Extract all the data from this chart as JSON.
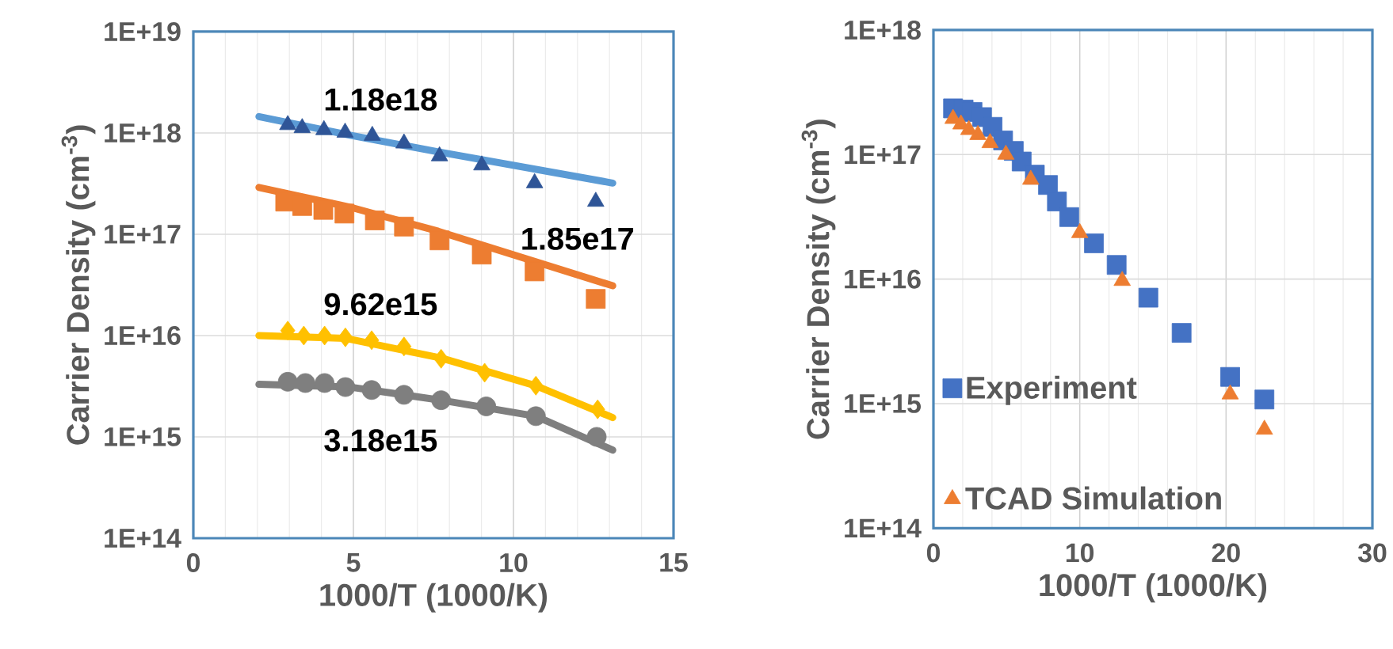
{
  "chart_data": [
    {
      "type": "scatter",
      "xlabel": "1000/T (1000/K)",
      "ylabel": "Carrier Density (cm$^{-3}$)",
      "log": "y",
      "grid": true,
      "legend": false,
      "xlim": [
        0,
        15
      ],
      "xticks": [
        0,
        5,
        10,
        15
      ],
      "ylim": [
        100000000000000.0,
        1e+19
      ],
      "yticks": [
        {
          "value": 100000000000000.0,
          "label": "1E+14"
        },
        {
          "value": 1000000000000000.0,
          "label": "1E+15"
        },
        {
          "value": 1e+16,
          "label": "1E+16"
        },
        {
          "value": 1e+17,
          "label": "1E+17"
        },
        {
          "value": 1e+18,
          "label": "1E+18"
        },
        {
          "value": 1e+19,
          "label": "1E+19"
        }
      ],
      "series": [
        {
          "marker": "triangle",
          "color": "#2f5597",
          "x": [
            2.95,
            3.4,
            4.08,
            4.74,
            5.59,
            6.58,
            7.69,
            9.01,
            10.66,
            12.57
          ],
          "values": [
            1.2e+18,
            1.12e+18,
            1.07e+18,
            1.01e+18,
            9.4e+17,
            7.9e+17,
            5.9e+17,
            4.8e+17,
            3.2e+17,
            2.1e+17
          ]
        },
        {
          "type": "line",
          "marker": "none",
          "color": "#5b9bd5",
          "x": [
            2.05,
            4.9,
            7.65,
            13.1
          ],
          "values": [
            1.45e+18,
            9.5e+17,
            6.5e+17,
            3.2e+17
          ]
        },
        {
          "marker": "square",
          "color": "#ed7d31",
          "x": [
            2.87,
            3.4,
            4.06,
            4.72,
            5.67,
            6.58,
            7.69,
            9.01,
            10.66,
            12.57
          ],
          "values": [
            2.1e+17,
            1.9e+17,
            1.74e+17,
            1.6e+17,
            1.37e+17,
            1.19e+17,
            8.7e+16,
            6.3e+16,
            4.3e+16,
            2.3e+16
          ]
        },
        {
          "type": "line",
          "marker": "none",
          "color": "#ed7d31",
          "x": [
            2.05,
            4.9,
            7.65,
            13.1
          ],
          "values": [
            2.9e+17,
            1.85e+17,
            1.07e+17,
            3.1e+16
          ]
        },
        {
          "marker": "diamond",
          "color": "#ffc000",
          "x": [
            2.95,
            3.45,
            4.1,
            4.75,
            5.57,
            6.58,
            7.74,
            9.1,
            10.7,
            12.63
          ],
          "values": [
            1.12e+16,
            1e+16,
            1e+16,
            9600000000000000.0,
            9000000000000000.0,
            7800000000000000.0,
            5900000000000000.0,
            4300000000000000.0,
            3200000000000000.0,
            1870000000000000.0
          ]
        },
        {
          "type": "line",
          "marker": "none",
          "color": "#ffc000",
          "x": [
            2.05,
            4.75,
            7.74,
            10.7,
            13.1
          ],
          "values": [
            1e+16,
            9400000000000000.0,
            6000000000000000.0,
            3200000000000000.0,
            1550000000000000.0
          ]
        },
        {
          "marker": "circle",
          "color": "#7f7f7f",
          "x": [
            2.95,
            3.5,
            4.1,
            4.75,
            5.57,
            6.58,
            7.74,
            9.15,
            10.7,
            12.6
          ],
          "values": [
            3500000000000000.0,
            3400000000000000.0,
            3400000000000000.0,
            3100000000000000.0,
            2900000000000000.0,
            2600000000000000.0,
            2300000000000000.0,
            2000000000000000.0,
            1600000000000000.0,
            1000000000000000.0
          ]
        },
        {
          "type": "line",
          "marker": "none",
          "color": "#7f7f7f",
          "x": [
            2.05,
            4.9,
            7.74,
            10.7,
            13.1
          ],
          "values": [
            3300000000000000.0,
            3100000000000000.0,
            2300000000000000.0,
            1600000000000000.0,
            740000000000000.0
          ]
        }
      ],
      "annotations": [
        "1.18e18",
        "1.85e17",
        "9.62e15",
        "3.18e15"
      ]
    },
    {
      "type": "scatter",
      "xlabel": "1000/T (1000/K)",
      "ylabel": "Carrier Density (cm$^{-3}$)",
      "log": "y",
      "grid": true,
      "legend": "bottom left",
      "xlim": [
        0,
        30
      ],
      "xticks": [
        0,
        10,
        20,
        30
      ],
      "ylim": [
        100000000000000.0,
        1e+18
      ],
      "yticks": [
        {
          "value": 100000000000000.0,
          "label": "1E+14"
        },
        {
          "value": 1000000000000000.0,
          "label": "1E+15"
        },
        {
          "value": 1e+16,
          "label": "1E+16"
        },
        {
          "value": 1e+17,
          "label": "1E+17"
        },
        {
          "value": 1e+18,
          "label": "1E+18"
        }
      ],
      "series": [
        {
          "name": "Experiment",
          "marker": "square",
          "color": "#4472c4",
          "x": [
            1.34,
            2.06,
            2.67,
            3.32,
            4.04,
            4.76,
            5.49,
            6.03,
            6.93,
            7.83,
            8.44,
            9.28,
            10.97,
            12.52,
            14.69,
            16.96,
            20.28,
            22.62
          ],
          "values": [
            2.35e+17,
            2.3e+17,
            2.2e+17,
            2e+17,
            1.67e+17,
            1.3e+17,
            1.07e+17,
            8.8e+16,
            6.9e+16,
            5.7e+16,
            4.2e+16,
            3.15e+16,
            1.94e+16,
            1.3e+16,
            7100000000000000.0,
            3700000000000000.0,
            1640000000000000.0,
            1080000000000000.0
          ]
        },
        {
          "name": "TCAD Simulation",
          "marker": "triangle",
          "color": "#ed7d31",
          "x": [
            1.34,
            1.88,
            2.42,
            3.04,
            3.87,
            4.95,
            6.65,
            10.0,
            12.9,
            20.28,
            22.62
          ],
          "values": [
            1.94e+17,
            1.75e+17,
            1.58e+17,
            1.44e+17,
            1.24e+17,
            1e+17,
            6.3e+16,
            2.35e+16,
            9700000000000000.0,
            1190000000000000.0,
            620000000000000.0
          ]
        }
      ]
    }
  ]
}
